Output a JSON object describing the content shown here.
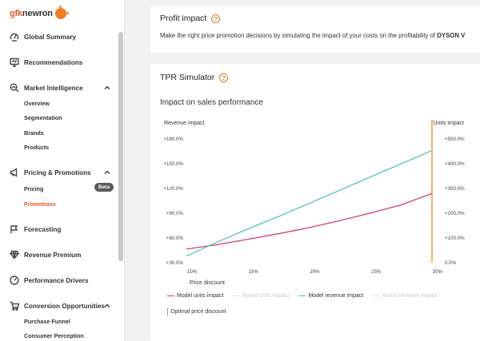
{
  "brand": {
    "prefix": "gfk",
    "name": "newron"
  },
  "sidebar": {
    "items": [
      {
        "label": "Global Summary",
        "icon": "gauge-icon"
      },
      {
        "label": "Recommendations",
        "icon": "monitor-icon"
      },
      {
        "label": "Market Intelligence",
        "icon": "magnifier-icon",
        "children": [
          "Overview",
          "Segmentation",
          "Brands",
          "Products"
        ]
      },
      {
        "label": "Pricing & Promotions",
        "icon": "megaphone-icon",
        "children": [
          "Pricing",
          "Promotions"
        ],
        "badge": "Beta",
        "active_child": "Promotions"
      },
      {
        "label": "Forecasting",
        "icon": "flag-icon"
      },
      {
        "label": "Revenue Premium",
        "icon": "diamond-icon"
      },
      {
        "label": "Performance Drivers",
        "icon": "speedometer-icon"
      },
      {
        "label": "Conversion Opportunities",
        "icon": "cart-icon",
        "children": [
          "Purchase Funnel",
          "Consumer Perception"
        ]
      }
    ]
  },
  "profit": {
    "title": "Profit impact",
    "description_prefix": "Make the right price promotion decisions by simulating the impact of your costs on the profitability of ",
    "description_bold": "DYSON V"
  },
  "simulator": {
    "title": "TPR Simulator",
    "subtitle": "Impact on sales performance"
  },
  "colors": {
    "units": "#d63c6a",
    "revenue": "#52c4bd",
    "optimal": "#f5a55c",
    "accent": "#e0591d"
  },
  "chart_data": {
    "type": "line",
    "xlabel": "Price discount",
    "ylabel_left": "Revenue impact",
    "ylabel_right": "Units impact",
    "x_ticks": [
      "10%",
      "15%",
      "20%",
      "25%",
      "30%"
    ],
    "y_left_ticks": [
      "+180.0%",
      "+150.0%",
      "+120.0%",
      "+90.0%",
      "+60.0%",
      "+30.0%"
    ],
    "y_right_ticks": [
      "+500.0%",
      "+400.0%",
      "+300.0%",
      "+200.0%",
      "+100.0%",
      "0.0%"
    ],
    "xlim": [
      10,
      30
    ],
    "ylim_left": [
      30,
      180
    ],
    "ylim_right": [
      0,
      500
    ],
    "optimal_discount": 30,
    "series": [
      {
        "name": "Model units impact",
        "axis": "right",
        "x": [
          10,
          12.5,
          15,
          17.5,
          20,
          22.5,
          25,
          27.5,
          30
        ],
        "values": [
          55,
          73,
          95,
          117,
          142,
          170,
          201,
          234,
          280
        ]
      },
      {
        "name": "Model revenue impact",
        "axis": "left",
        "x": [
          10,
          12.5,
          15,
          17.5,
          20,
          22.5,
          25,
          27.5,
          30
        ],
        "values": [
          38,
          55,
          71,
          86,
          102,
          118,
          134,
          150,
          166
        ]
      }
    ]
  },
  "legend": [
    {
      "label": "Model units impact",
      "color": "#d63c6a",
      "faded": false
    },
    {
      "label": "Brand units impact",
      "color": "#dddddd",
      "faded": true
    },
    {
      "label": "Model revenue impact",
      "color": "#52c4bd",
      "faded": false
    },
    {
      "label": "Brand revenue impact",
      "color": "#dddddd",
      "faded": true
    }
  ],
  "optimal_label": "Optimal price discount"
}
